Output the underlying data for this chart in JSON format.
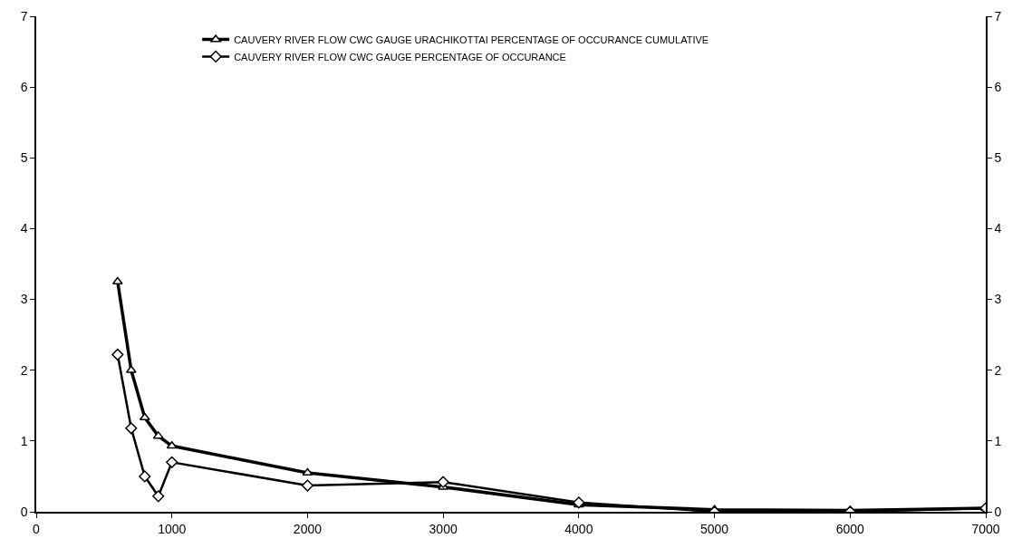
{
  "chart_data": {
    "type": "line",
    "x": [
      600,
      700,
      800,
      900,
      1000,
      2000,
      3000,
      4000,
      5000,
      6000,
      7000
    ],
    "series": [
      {
        "name": "CAUVERY RIVER FLOW CWC GAUGE URACHIKOTTAI PERCENTAGE OF OCCURANCE CUMULATIVE",
        "color": "#000000",
        "marker": "triangle",
        "values": [
          3.25,
          2.0,
          1.33,
          1.07,
          0.93,
          0.55,
          0.35,
          0.1,
          0.03,
          0.02,
          0.05
        ]
      },
      {
        "name": "CAUVERY RIVER FLOW CWC GAUGE PERCENTAGE OF OCCURANCE",
        "color": "#000000",
        "marker": "diamond",
        "values": [
          2.22,
          1.18,
          0.5,
          0.22,
          0.7,
          0.37,
          0.42,
          0.13,
          0.0,
          0.0,
          0.05
        ]
      }
    ],
    "xlim": [
      0,
      7000
    ],
    "xticks": [
      0,
      1000,
      2000,
      3000,
      4000,
      5000,
      6000,
      7000
    ],
    "ylim": [
      0,
      7
    ],
    "yticks": [
      0,
      1,
      2,
      3,
      4,
      5,
      6,
      7
    ],
    "y2lim": [
      0,
      7
    ],
    "y2ticks": [
      0,
      1,
      2,
      3,
      4,
      5,
      6,
      7
    ],
    "legend": "top",
    "line_style": "solid"
  }
}
